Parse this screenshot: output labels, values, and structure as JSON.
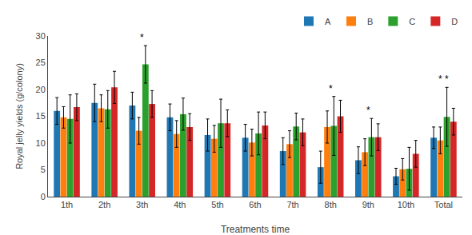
{
  "chart_data": {
    "type": "bar",
    "categories": [
      "1th",
      "2th",
      "3th",
      "4th",
      "5th",
      "6th",
      "7th",
      "8th",
      "9th",
      "10th",
      "Total"
    ],
    "series": [
      {
        "name": "A",
        "values": [
          16.0,
          17.5,
          17.0,
          14.8,
          11.5,
          11.0,
          8.5,
          5.5,
          6.8,
          3.8,
          11.0
        ],
        "errors": [
          2.5,
          3.5,
          2.5,
          2.5,
          3.0,
          2.5,
          2.5,
          3.0,
          2.5,
          1.5,
          2.0
        ]
      },
      {
        "name": "B",
        "values": [
          14.8,
          16.5,
          12.3,
          11.7,
          10.8,
          10.1,
          9.8,
          13.0,
          8.3,
          5.1,
          10.5
        ],
        "errors": [
          2.0,
          2.5,
          2.5,
          2.5,
          2.5,
          2.5,
          2.5,
          3.0,
          2.5,
          2.0,
          2.5
        ]
      },
      {
        "name": "C",
        "values": [
          14.5,
          16.3,
          24.7,
          15.4,
          13.7,
          11.8,
          13.1,
          13.2,
          11.1,
          5.2,
          14.9
        ],
        "errors": [
          4.5,
          3.5,
          3.5,
          3.0,
          4.5,
          4.0,
          2.5,
          5.5,
          3.5,
          4.0,
          5.5
        ]
      },
      {
        "name": "D",
        "values": [
          16.7,
          20.4,
          17.3,
          13.0,
          13.7,
          13.3,
          12.0,
          15.0,
          11.1,
          8.0,
          14.0
        ],
        "errors": [
          2.5,
          3.0,
          2.5,
          2.5,
          2.5,
          2.5,
          2.5,
          3.0,
          2.5,
          2.5,
          2.5
        ]
      }
    ],
    "xlabel": "Treatments time",
    "ylabel": "Royal jelly yields (g/colony)",
    "ylim": [
      0,
      30
    ],
    "yticks": [
      0,
      5,
      10,
      15,
      20,
      25,
      30
    ],
    "annotations": [
      {
        "category": "3th",
        "text": "*"
      },
      {
        "category": "8th",
        "text": "*"
      },
      {
        "category": "9th",
        "text": "*"
      },
      {
        "category": "Total",
        "text": "* *"
      }
    ],
    "grid": false,
    "legend": "upper right"
  }
}
